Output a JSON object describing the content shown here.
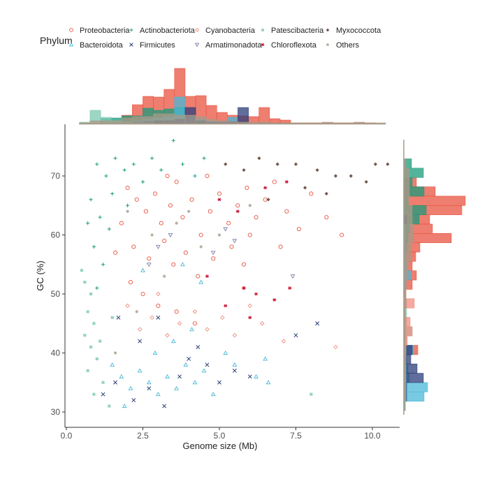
{
  "chart_data": {
    "type": "scatter",
    "title": "",
    "xlabel": "Genome size (Mb)",
    "ylabel": "GC (%)",
    "xlim": [
      -0.3,
      11
    ],
    "ylim": [
      28.5,
      77
    ],
    "xticks": [
      "0.0",
      "2.5",
      "5.0",
      "7.5",
      "10.0"
    ],
    "yticks": [
      "30",
      "40",
      "50",
      "60",
      "70"
    ],
    "grid": false,
    "legend": {
      "title": "Phylum",
      "placement": "top"
    },
    "series": [
      {
        "name": "Proteobacteria",
        "color": "#E8533F",
        "marker": "circle-open",
        "points": [
          [
            2.0,
            68
          ],
          [
            2.3,
            66
          ],
          [
            2.6,
            64
          ],
          [
            2.9,
            67
          ],
          [
            3.1,
            62
          ],
          [
            3.4,
            65
          ],
          [
            3.6,
            69
          ],
          [
            3.8,
            63
          ],
          [
            4.1,
            66
          ],
          [
            4.4,
            60
          ],
          [
            4.7,
            64
          ],
          [
            5.0,
            67
          ],
          [
            5.3,
            62
          ],
          [
            5.6,
            65
          ],
          [
            5.9,
            68
          ],
          [
            6.2,
            63
          ],
          [
            6.5,
            66
          ],
          [
            6.8,
            69
          ],
          [
            7.2,
            64
          ],
          [
            7.6,
            61
          ],
          [
            8.0,
            67
          ],
          [
            8.5,
            63
          ],
          [
            9.0,
            60
          ],
          [
            2.2,
            58
          ],
          [
            2.7,
            56
          ],
          [
            3.2,
            59
          ],
          [
            3.5,
            55
          ],
          [
            3.9,
            57
          ],
          [
            4.3,
            53
          ],
          [
            4.8,
            56
          ],
          [
            5.4,
            58
          ],
          [
            6.0,
            60
          ],
          [
            2.5,
            50
          ],
          [
            3.0,
            48
          ],
          [
            3.6,
            47
          ],
          [
            4.2,
            45
          ],
          [
            1.8,
            62
          ],
          [
            1.6,
            57
          ],
          [
            2.1,
            52
          ],
          [
            5.8,
            55
          ],
          [
            7.0,
            58
          ],
          [
            3.3,
            70
          ],
          [
            4.6,
            70
          ]
        ]
      },
      {
        "name": "Bacteroidota",
        "color": "#4AB8D8",
        "marker": "triangle-open",
        "points": [
          [
            1.5,
            38
          ],
          [
            1.8,
            36
          ],
          [
            2.1,
            34
          ],
          [
            2.4,
            37
          ],
          [
            2.7,
            35
          ],
          [
            3.0,
            33
          ],
          [
            3.3,
            36
          ],
          [
            3.6,
            34
          ],
          [
            3.9,
            38
          ],
          [
            4.2,
            35
          ],
          [
            4.5,
            37
          ],
          [
            4.8,
            33
          ],
          [
            5.2,
            40
          ],
          [
            5.5,
            38
          ],
          [
            6.2,
            36
          ],
          [
            6.6,
            35
          ],
          [
            2.9,
            40
          ],
          [
            3.5,
            42
          ],
          [
            4.1,
            44
          ],
          [
            3.8,
            55
          ],
          [
            2.5,
            54
          ],
          [
            4.4,
            52
          ],
          [
            1.9,
            31
          ],
          [
            6.5,
            39
          ]
        ]
      },
      {
        "name": "Actinobacteriota",
        "color": "#1A9B7B",
        "marker": "plus",
        "points": [
          [
            1.0,
            72
          ],
          [
            1.3,
            70
          ],
          [
            1.6,
            73
          ],
          [
            1.9,
            71
          ],
          [
            2.2,
            72
          ],
          [
            2.5,
            69
          ],
          [
            2.8,
            73
          ],
          [
            3.1,
            71
          ],
          [
            3.5,
            76
          ],
          [
            3.8,
            72
          ],
          [
            4.2,
            70
          ],
          [
            4.5,
            73
          ],
          [
            0.8,
            66
          ],
          [
            1.1,
            63
          ],
          [
            1.4,
            61
          ],
          [
            0.9,
            58
          ],
          [
            1.2,
            55
          ],
          [
            1.0,
            51
          ],
          [
            1.5,
            67
          ],
          [
            2.0,
            65
          ],
          [
            0.7,
            62
          ]
        ]
      },
      {
        "name": "Firmicutes",
        "color": "#2C3E7A",
        "marker": "cross",
        "points": [
          [
            1.2,
            33
          ],
          [
            1.6,
            35
          ],
          [
            2.2,
            32
          ],
          [
            2.7,
            34
          ],
          [
            3.2,
            31
          ],
          [
            3.7,
            36
          ],
          [
            4.0,
            39
          ],
          [
            4.3,
            41
          ],
          [
            4.6,
            38
          ],
          [
            5.0,
            35
          ],
          [
            5.5,
            37
          ],
          [
            6.0,
            36
          ],
          [
            8.2,
            45
          ],
          [
            7.5,
            43
          ],
          [
            2.4,
            42
          ],
          [
            1.7,
            46
          ],
          [
            3.0,
            46
          ]
        ]
      },
      {
        "name": "Cyanobacteria",
        "color": "#F08E80",
        "marker": "diamond-open",
        "points": [
          [
            2.4,
            44
          ],
          [
            2.8,
            46
          ],
          [
            3.3,
            43
          ],
          [
            3.7,
            45
          ],
          [
            4.2,
            47
          ],
          [
            4.6,
            44
          ],
          [
            5.1,
            46
          ],
          [
            5.5,
            43
          ],
          [
            6.0,
            48
          ],
          [
            6.4,
            45
          ],
          [
            7.1,
            42
          ],
          [
            8.8,
            41
          ],
          [
            2.0,
            48
          ],
          [
            3.0,
            50
          ],
          [
            5.8,
            51
          ]
        ]
      },
      {
        "name": "Armatimonadota",
        "color": "#7A7FA8",
        "marker": "triangle-down-open",
        "points": [
          [
            3.0,
            58
          ],
          [
            3.4,
            60
          ],
          [
            4.8,
            57
          ],
          [
            5.2,
            61
          ],
          [
            7.4,
            53
          ],
          [
            5.5,
            59
          ],
          [
            2.7,
            55
          ]
        ]
      },
      {
        "name": "Patescibacteria",
        "color": "#7EC8B3",
        "marker": "square",
        "points": [
          [
            0.6,
            52
          ],
          [
            0.8,
            50
          ],
          [
            0.7,
            47
          ],
          [
            0.9,
            45
          ],
          [
            0.6,
            43
          ],
          [
            0.8,
            41
          ],
          [
            1.0,
            39
          ],
          [
            0.7,
            37
          ],
          [
            1.2,
            35
          ],
          [
            0.9,
            33
          ],
          [
            1.4,
            31
          ],
          [
            1.1,
            42
          ],
          [
            0.5,
            54
          ],
          [
            1.5,
            46
          ],
          [
            8.0,
            33
          ]
        ]
      },
      {
        "name": "Chloroflexota",
        "color": "#C8102E",
        "marker": "asterisk",
        "points": [
          [
            5.8,
            51
          ],
          [
            6.2,
            50
          ],
          [
            6.8,
            49
          ],
          [
            7.3,
            51
          ],
          [
            5.2,
            48
          ],
          [
            6.0,
            46
          ],
          [
            4.6,
            53
          ],
          [
            5.0,
            66
          ],
          [
            6.5,
            68
          ],
          [
            7.2,
            69
          ],
          [
            5.6,
            64
          ]
        ]
      },
      {
        "name": "Myxococcota",
        "color": "#6E5A4E",
        "marker": "diamond-filled",
        "points": [
          [
            5.2,
            72
          ],
          [
            5.8,
            71
          ],
          [
            6.3,
            73
          ],
          [
            6.9,
            72
          ],
          [
            7.5,
            72
          ],
          [
            8.2,
            71
          ],
          [
            8.8,
            70
          ],
          [
            9.3,
            70
          ],
          [
            9.8,
            69
          ],
          [
            10.1,
            72
          ],
          [
            10.5,
            72
          ],
          [
            7.8,
            68
          ],
          [
            6.6,
            66
          ],
          [
            8.5,
            67
          ]
        ]
      },
      {
        "name": "Others",
        "color": "#A89A88",
        "marker": "dot",
        "points": [
          [
            2.0,
            64
          ],
          [
            2.8,
            60
          ],
          [
            3.6,
            62
          ],
          [
            4.4,
            58
          ],
          [
            3.2,
            53
          ],
          [
            5.0,
            60
          ],
          [
            2.3,
            47
          ],
          [
            1.6,
            40
          ],
          [
            4.0,
            64
          ],
          [
            6.0,
            65
          ]
        ]
      }
    ],
    "legend_order": [
      "Proteobacteria",
      "Actinobacteriota",
      "Cyanobacteria",
      "Patescibacteria",
      "Myxococcota",
      "Bacteroidota",
      "Firmicutes",
      "Armatimonadota",
      "Chloroflexota",
      "Others"
    ],
    "marginal_x_histogram": {
      "bin_start": 0.43,
      "bin_width": 0.345,
      "counts": {
        "Proteobacteria": [
          0,
          0,
          0,
          3,
          12,
          27,
          39,
          38,
          49,
          79,
          39,
          40,
          26,
          16,
          12,
          11,
          10,
          23,
          7,
          5,
          1,
          1,
          1,
          1,
          1,
          1,
          1,
          1,
          0
        ],
        "Actinobacteriota": [
          0,
          0,
          7,
          8,
          11,
          11,
          22,
          19,
          21,
          23,
          10,
          5,
          2,
          0,
          0,
          0,
          0,
          0,
          0,
          0,
          0,
          0,
          0,
          0,
          0,
          0,
          0,
          0,
          0
        ],
        "Bacteroidota": [
          0,
          0,
          0,
          0,
          2,
          4,
          6,
          8,
          10,
          38,
          8,
          6,
          3,
          2,
          9,
          2,
          0,
          0,
          0,
          0,
          0,
          0,
          0,
          0,
          0,
          0,
          0,
          0,
          0
        ],
        "Firmicutes": [
          0,
          0,
          0,
          0,
          1,
          2,
          3,
          4,
          4,
          6,
          23,
          4,
          2,
          2,
          3,
          23,
          0,
          0,
          0,
          0,
          0,
          0,
          0,
          0,
          0,
          0,
          0,
          0,
          0
        ],
        "Patescibacteria": [
          2,
          19,
          9,
          4,
          2,
          1,
          1,
          0,
          0,
          0,
          0,
          0,
          0,
          0,
          0,
          0,
          0,
          0,
          0,
          0,
          0,
          0,
          0,
          0,
          0,
          0,
          0,
          0,
          0
        ],
        "Others": [
          1,
          4,
          4,
          4,
          8,
          10,
          10,
          14,
          14,
          12,
          12,
          10,
          6,
          4,
          3,
          2,
          2,
          2,
          1,
          1,
          1,
          1,
          1,
          2,
          1,
          1,
          2,
          1,
          1
        ]
      }
    },
    "marginal_y_histogram": {
      "bin_top": 72.9,
      "bin_width": 1.58,
      "counts": {
        "Proteobacteria": [
          0,
          0,
          18,
          45,
          88,
          83,
          37,
          41,
          68,
          23,
          17,
          12,
          18,
          12,
          3,
          4,
          2,
          3,
          3,
          2,
          20,
          4,
          3,
          2,
          1,
          1,
          0
        ],
        "Actinobacteriota": [
          11,
          28,
          12,
          29,
          6,
          32,
          22,
          8,
          6,
          4,
          2,
          1,
          0,
          0,
          0,
          0,
          0,
          0,
          0,
          0,
          0,
          0,
          0,
          0,
          0,
          0,
          0
        ],
        "Cyanobacteria": [
          0,
          0,
          0,
          0,
          0,
          0,
          0,
          0,
          0,
          0,
          0,
          0,
          0,
          0,
          0,
          15,
          0,
          9,
          12,
          5,
          3,
          0,
          0,
          0,
          0,
          0,
          0
        ],
        "Bacteroidota": [
          0,
          0,
          0,
          0,
          0,
          0,
          4,
          2,
          2,
          2,
          2,
          4,
          10,
          2,
          0,
          0,
          0,
          0,
          0,
          0,
          14,
          4,
          6,
          8,
          34,
          29,
          2
        ],
        "Firmicutes": [
          0,
          0,
          0,
          0,
          0,
          0,
          4,
          0,
          0,
          0,
          0,
          0,
          0,
          0,
          0,
          0,
          0,
          0,
          0,
          0,
          12,
          10,
          19,
          28,
          4,
          4,
          2
        ],
        "Patescibacteria": [
          0,
          0,
          0,
          0,
          0,
          0,
          0,
          0,
          0,
          0,
          0,
          0,
          0,
          0,
          0,
          4,
          4,
          4,
          12,
          4,
          3,
          3,
          3,
          3,
          3,
          3,
          2
        ],
        "Others": [
          3,
          8,
          8,
          8,
          8,
          12,
          12,
          14,
          14,
          10,
          10,
          6,
          6,
          4,
          3,
          3,
          2,
          2,
          2,
          2,
          3,
          3,
          2,
          2,
          2,
          2,
          1
        ]
      }
    }
  }
}
